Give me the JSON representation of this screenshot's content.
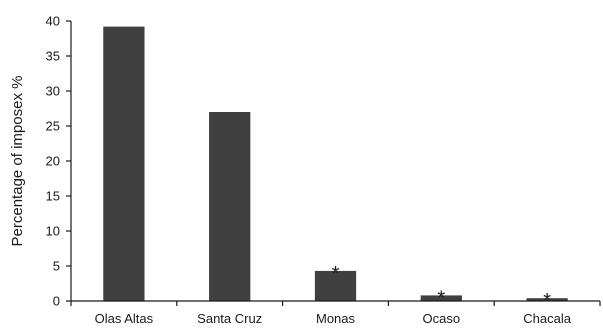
{
  "chart_data": {
    "type": "bar",
    "title": "",
    "xlabel": "",
    "ylabel": "Percentage of imposex %",
    "categories": [
      "Olas Altas",
      "Santa Cruz",
      "Monas",
      "Ocaso",
      "Chacala"
    ],
    "values": [
      39.2,
      27,
      4.3,
      0.8,
      0.4
    ],
    "significance_markers": [
      "",
      "",
      "*",
      "*",
      "*"
    ],
    "ylim": [
      0,
      40
    ],
    "yticks": [
      0,
      5,
      10,
      15,
      20,
      25,
      30,
      35,
      40
    ],
    "grid": false,
    "bar_color": "#404040",
    "axis_color": "#1a1a1a"
  }
}
